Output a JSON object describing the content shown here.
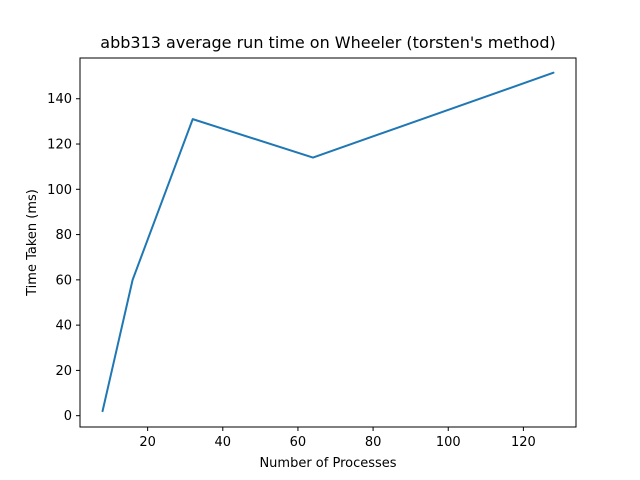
{
  "chart_data": {
    "type": "line",
    "title": "abb313 average run time on Wheeler (torsten's method)",
    "xlabel": "Number of Processes",
    "ylabel": "Time Taken (ms)",
    "xlim": [
      2,
      134
    ],
    "ylim": [
      -5,
      158
    ],
    "xticks": [
      20,
      40,
      60,
      80,
      100,
      120
    ],
    "yticks": [
      0,
      20,
      40,
      60,
      80,
      100,
      120,
      140
    ],
    "grid": false,
    "series": [
      {
        "name": "average run time",
        "color": "#1f77b4",
        "x": [
          8,
          16,
          32,
          64,
          128
        ],
        "y": [
          2,
          60,
          131,
          114,
          151.5
        ]
      }
    ]
  }
}
